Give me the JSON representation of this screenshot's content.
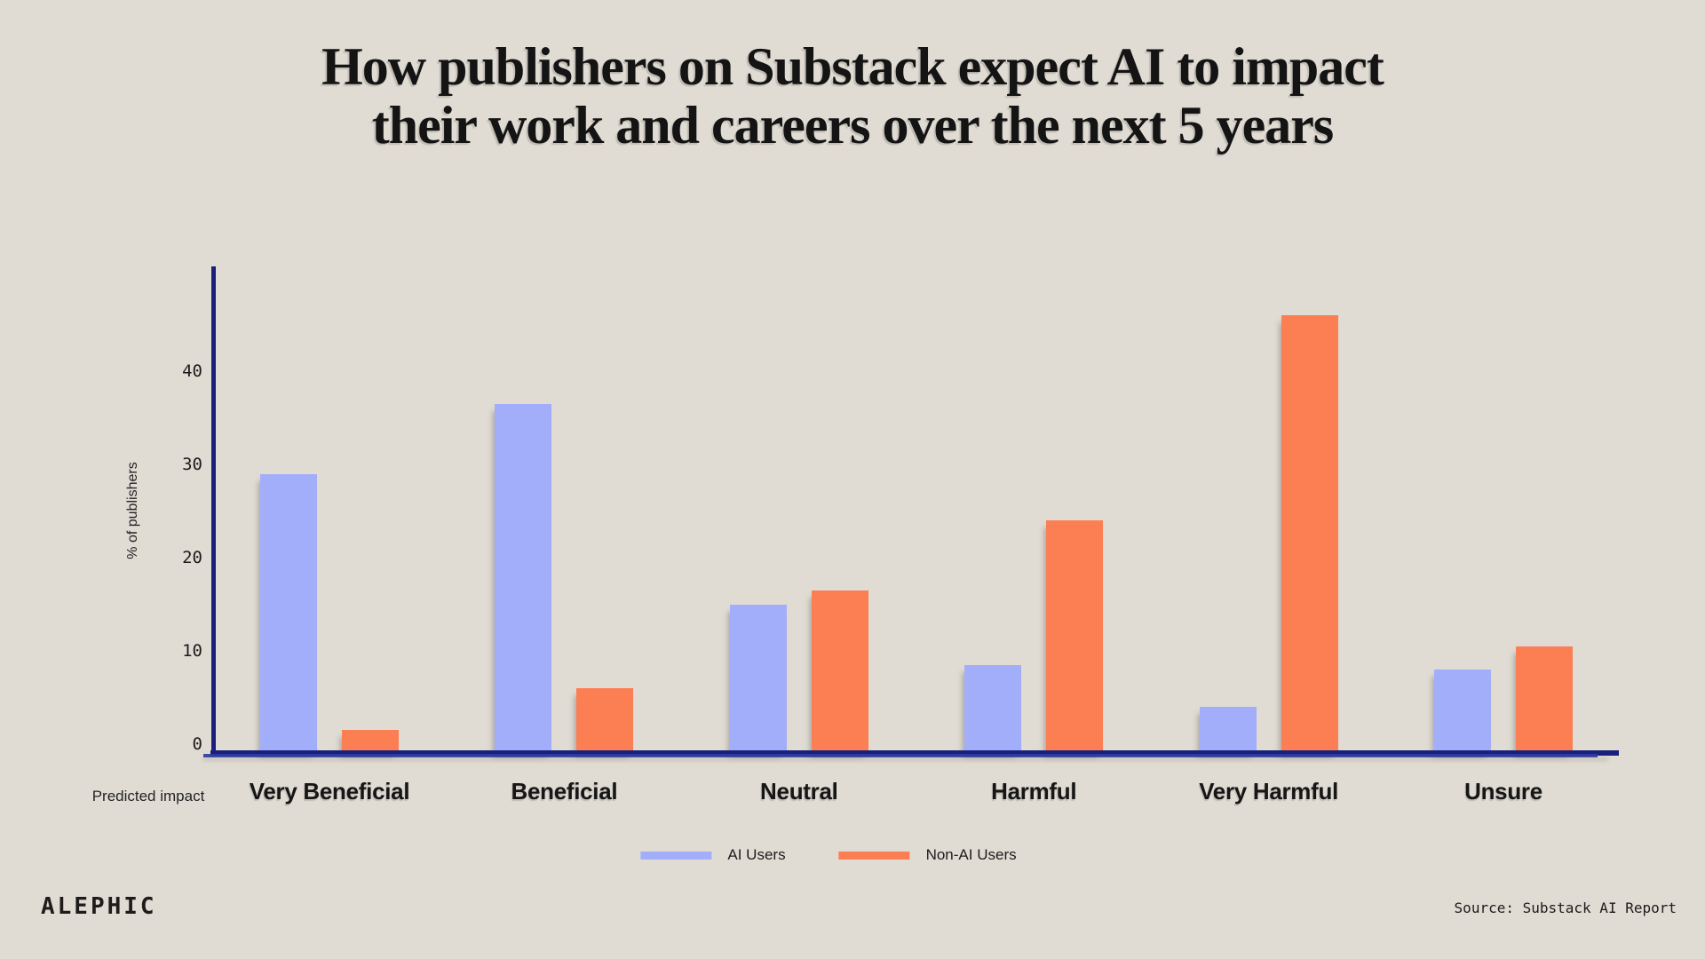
{
  "title": {
    "line1": "How publishers on Substack expect AI to impact",
    "line2": "their work and careers over the next 5 years"
  },
  "chart_data": {
    "type": "bar",
    "title": "How publishers on Substack expect AI to impact their work and careers over the next 5 years",
    "categories": [
      "Very Beneficial",
      "Beneficial",
      "Neutral",
      "Harmful",
      "Very Harmful",
      "Unsure"
    ],
    "series": [
      {
        "name": "AI Users",
        "color": "#a3aefa",
        "values": [
          29,
          36.5,
          15,
          8.5,
          4,
          8
        ]
      },
      {
        "name": "Non-AI Users",
        "color": "#fc7e53",
        "values": [
          1.5,
          6,
          16.5,
          24,
          46,
          10.5
        ]
      }
    ],
    "xlabel": "Predicted impact",
    "ylabel": "% of publishers",
    "yticks": [
      40,
      30,
      20,
      10,
      0
    ],
    "ylim": [
      0,
      52
    ],
    "grid": false,
    "legend_position": "bottom center"
  },
  "colors": {
    "background": "#e0dcd4",
    "axis": "#18207c",
    "ai_users": "#a3aefa",
    "non_ai_users": "#fc7e53",
    "text": "#1a1a1a"
  },
  "footer": {
    "brand": "ALEPHIC",
    "source": "Source: Substack AI Report"
  }
}
